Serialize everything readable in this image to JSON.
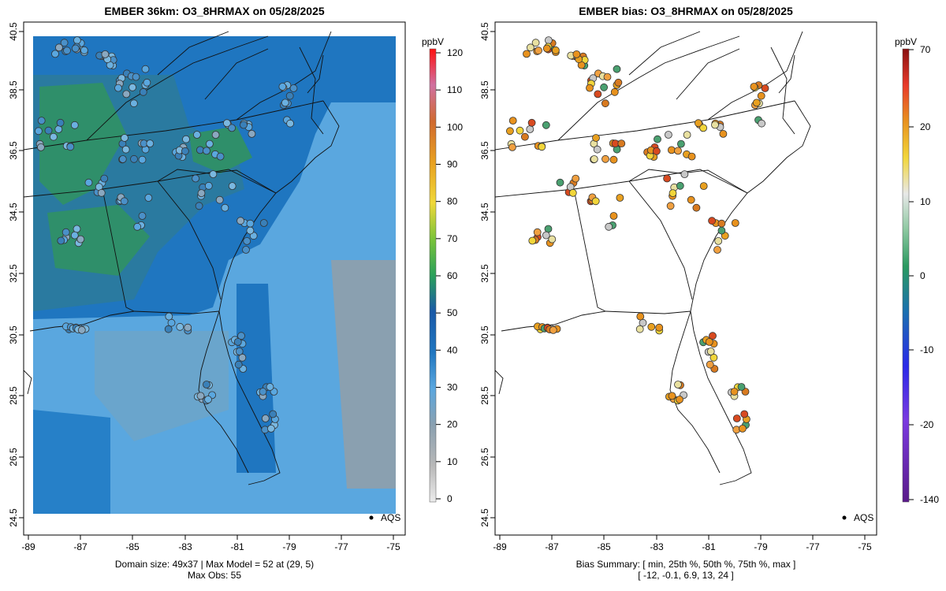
{
  "left_panel": {
    "title": "EMBER 36km: O3_8HRMAX on 05/28/2025",
    "footer_line1": "Domain size: 49x37 | Max Model = 52 at (29, 5)",
    "footer_line2": "Max Obs: 55",
    "legend_label": "AQS",
    "colorbar": {
      "unit": "ppbV",
      "ticks": [
        "0",
        "10",
        "20",
        "30",
        "40",
        "50",
        "60",
        "70",
        "80",
        "90",
        "100",
        "110",
        "120"
      ],
      "min": 0,
      "max": 120
    }
  },
  "right_panel": {
    "title": "EMBER bias: O3_8HRMAX on 05/28/2025",
    "footer_line1": "Bias Summary: [ min, 25th %, 50th %, 75th %, max ]",
    "footer_line2": "[ -12,   -0.1,   6.9,   13,   24 ]",
    "legend_label": "AQS",
    "colorbar": {
      "unit": "ppbV",
      "ticks": [
        "70",
        "20",
        "10",
        "0",
        "-10",
        "-20",
        "-140"
      ]
    }
  },
  "axes": {
    "x_ticks": [
      "-89",
      "-87",
      "-85",
      "-83",
      "-81",
      "-79",
      "-77",
      "-75"
    ],
    "y_ticks": [
      "24.5",
      "26.5",
      "28.5",
      "30.5",
      "32.5",
      "34.5",
      "36.5",
      "38.5",
      "40.5"
    ],
    "lon_range": [
      -89.2,
      -74.6
    ],
    "lat_range": [
      24.4,
      40.8
    ]
  },
  "colors": {
    "model_high": "#2f8f6a",
    "model_mid": "#1e74b8",
    "model_low": "#5aa7df",
    "model_min": "#8aa0b0",
    "bias_pos": "#e8921e",
    "bias_high": "#d84a20",
    "bias_neutral": "#f2d63a"
  }
}
